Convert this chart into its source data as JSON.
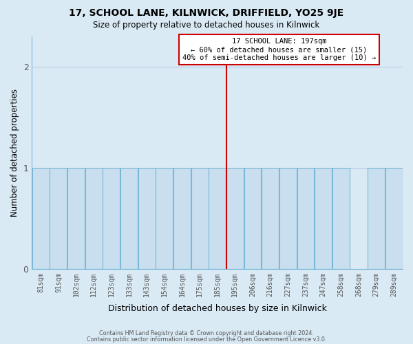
{
  "title": "17, SCHOOL LANE, KILNWICK, DRIFFIELD, YO25 9JE",
  "subtitle": "Size of property relative to detached houses in Kilnwick",
  "xlabel": "Distribution of detached houses by size in Kilnwick",
  "ylabel": "Number of detached properties",
  "bin_labels": [
    "81sqm",
    "91sqm",
    "102sqm",
    "112sqm",
    "123sqm",
    "133sqm",
    "143sqm",
    "154sqm",
    "164sqm",
    "175sqm",
    "185sqm",
    "195sqm",
    "206sqm",
    "216sqm",
    "227sqm",
    "237sqm",
    "247sqm",
    "258sqm",
    "268sqm",
    "279sqm",
    "289sqm"
  ],
  "bin_values": [
    1,
    1,
    1,
    1,
    1,
    1,
    1,
    1,
    1,
    1,
    1,
    1,
    1,
    1,
    1,
    1,
    1,
    1,
    0,
    1,
    1
  ],
  "bar_color": "#c9dff0",
  "bar_edge_color": "#7ab8d9",
  "property_line_idx": 11,
  "annotation_title": "17 SCHOOL LANE: 197sqm",
  "annotation_line1": "← 60% of detached houses are smaller (15)",
  "annotation_line2": "40% of semi-detached houses are larger (10) →",
  "annotation_box_color": "#ffffff",
  "annotation_box_edge_color": "#cc0000",
  "red_line_color": "#cc0000",
  "ylim": [
    0,
    2.3
  ],
  "yticks": [
    0,
    1,
    2
  ],
  "footer_line1": "Contains HM Land Registry data © Crown copyright and database right 2024.",
  "footer_line2": "Contains public sector information licensed under the Open Government Licence v3.0.",
  "bg_color": "#daeaf5",
  "grid_color": "#aec9e0",
  "spine_color": "#7ab8d9"
}
